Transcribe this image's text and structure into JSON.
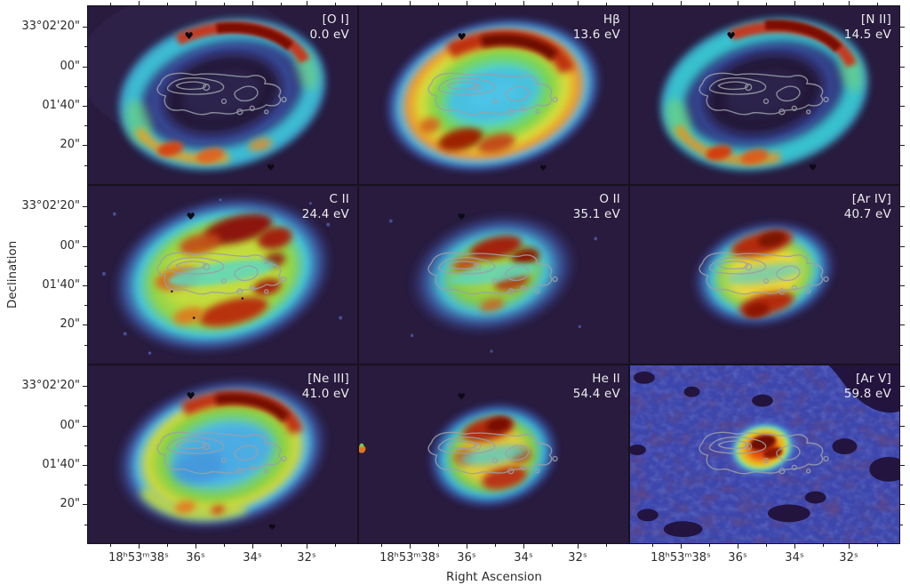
{
  "figure": {
    "xlabel": "Right Ascension",
    "ylabel": "Declination",
    "x_ticks": [
      "18ʰ53ᵐ38ˢ",
      "36ˢ",
      "34ˢ",
      "32ˢ"
    ],
    "y_ticks": [
      "33°02'20\"",
      "00\"",
      "01'40\"",
      "20\""
    ]
  },
  "panels": [
    {
      "line": "[O I]",
      "energy": "0.0 eV"
    },
    {
      "line": "Hβ",
      "energy": "13.6 eV"
    },
    {
      "line": "[N II]",
      "energy": "14.5 eV"
    },
    {
      "line": "C II",
      "energy": "24.4 eV"
    },
    {
      "line": "O II",
      "energy": "35.1 eV"
    },
    {
      "line": "[Ar IV]",
      "energy": "40.7 eV"
    },
    {
      "line": "[Ne III]",
      "energy": "41.0 eV"
    },
    {
      "line": "He II",
      "energy": "54.4 eV"
    },
    {
      "line": "[Ar V]",
      "energy": "59.8 eV"
    }
  ],
  "chart_data": {
    "type": "heatmap",
    "subtype": "3x3 grid of astronomical emission-line intensity maps of an elliptical planetary nebula (Ring-Nebula-like), false-color",
    "xlabel": "Right Ascension",
    "ylabel": "Declination",
    "x_tick_labels": [
      "18ʰ53ᵐ38ˢ",
      "36ˢ",
      "34ˢ",
      "32ˢ"
    ],
    "y_tick_labels": [
      "33°02'20\"",
      "00\"",
      "01'40\"",
      "20\""
    ],
    "colormap": "dark purple → blue → cyan → green → yellow → orange → red → dark red",
    "overlay_contours": "gray contours of a central elongated clumpy structure repeated in every panel",
    "markers": "small black heart/triangle star masks near top-center and bottom-center of several panels",
    "panels": [
      {
        "row": 1,
        "col": 1,
        "line": "[O I]",
        "ionization_energy_eV": 0.0,
        "morphology": "thin cyan-blue elliptical ring, bright dark-red arc on upper-right rim, orange/red knots on lower-left rim, dark central cavity"
      },
      {
        "row": 1,
        "col": 2,
        "line": "Hβ",
        "ionization_energy_eV": 13.6,
        "morphology": "filled ellipse, cyan interior, green-yellow-orange shell, thick dark-red arcs upper-right and lower-left"
      },
      {
        "row": 1,
        "col": 3,
        "line": "[N II]",
        "ionization_energy_eV": 14.5,
        "morphology": "cyan-blue ring, long dark-red arc along upper rim, orange-red arc lower-left, dark cavity"
      },
      {
        "row": 2,
        "col": 1,
        "line": "C II",
        "ionization_energy_eV": 24.4,
        "morphology": "large mottled green-yellow blob with extensive dark-red patches, cyan lane along contours, blue fringe, speckled background"
      },
      {
        "row": 2,
        "col": 2,
        "line": "O II",
        "ionization_energy_eV": 35.1,
        "morphology": "smaller green-yellow blob with clustered red patches near center, blue fringe"
      },
      {
        "row": 2,
        "col": 3,
        "line": "[Ar IV]",
        "ionization_energy_eV": 40.7,
        "morphology": "compact smooth ellipse, yellow core, red arcs top and bottom, green-blue fade"
      },
      {
        "row": 3,
        "col": 1,
        "line": "[Ne III]",
        "ionization_energy_eV": 41.0,
        "morphology": "filled ellipse, blue-cyan interior, dark-red arc upper-right, yellow-green arc lower-left, blue fringe"
      },
      {
        "row": 3,
        "col": 2,
        "line": "He II",
        "ionization_energy_eV": 54.4,
        "morphology": "small round blob, red knots top and bottom, yellow-green body, cyan-blue fringe, tiny orange star at left edge"
      },
      {
        "row": 3,
        "col": 3,
        "line": "[Ar V]",
        "ionization_energy_eV": 59.8,
        "morphology": "very compact red/orange core at center fading through yellow-green-cyan, on mottled blue background with dark irregular patches"
      }
    ],
    "legend_position": "none; each panel labeled top-right with emission line and ionization energy"
  }
}
